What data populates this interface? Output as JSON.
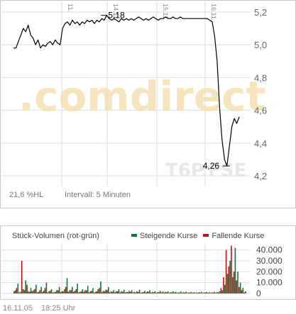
{
  "chart_data": [
    {
      "type": "line",
      "ylim": [
        4.2,
        5.2
      ],
      "yticks": [
        "5,2",
        "5,0",
        "4,8",
        "4,6",
        "4,4",
        "4,2"
      ],
      "ytick_values": [
        5.2,
        5.0,
        4.8,
        4.6,
        4.4,
        4.2
      ],
      "x_day_labels": [
        "11.",
        "14.11.",
        "15.11.",
        "16.11."
      ],
      "grid": true,
      "annotations": [
        {
          "label": "5,18",
          "value": 5.18,
          "kind": "high"
        },
        {
          "label": "4,26",
          "value": 4.26,
          "kind": "low"
        }
      ],
      "series": [
        {
          "values": [
            4.98,
            4.98,
            5.02,
            5.06,
            5.1,
            5.08,
            5.12,
            5.06,
            5.04,
            5.0,
            5.03,
            4.98,
            5.0,
            4.99,
            5.01,
            5.02,
            5.0,
            5.03,
            5.01,
            5.0,
            5.1,
            5.13,
            5.14,
            5.12,
            5.15,
            5.13,
            5.14,
            5.12,
            5.14,
            5.13,
            5.15,
            5.14,
            5.15,
            5.13,
            5.15,
            5.14,
            5.16,
            5.15,
            5.18,
            5.16,
            5.15,
            5.16,
            5.15,
            5.14,
            5.16,
            5.15,
            5.16,
            5.15,
            5.16,
            5.15,
            5.16,
            5.17,
            5.16,
            5.15,
            5.16,
            5.15,
            5.16,
            5.17,
            5.16,
            5.15,
            5.16,
            5.16,
            5.17,
            5.16,
            5.16,
            5.17,
            5.16,
            5.16,
            5.17,
            5.16,
            5.16,
            5.16,
            5.16,
            5.16,
            5.16,
            5.16,
            5.16,
            5.16,
            5.16,
            5.16,
            5.15,
            5.14,
            5.05,
            4.9,
            4.62,
            4.42,
            4.3,
            4.26,
            4.38,
            4.5,
            4.55,
            4.52,
            4.56
          ]
        }
      ]
    },
    {
      "type": "bar",
      "title": "Stück-Volumen (rot-grün)",
      "ylim": [
        0,
        45000
      ],
      "yticks": [
        "40.000",
        "30.000",
        "20.000",
        "10.000",
        "0"
      ],
      "ytick_values": [
        40000,
        30000,
        20000,
        10000,
        0
      ],
      "legend": [
        {
          "name": "Steigende Kurse",
          "color": "#0a7a3a"
        },
        {
          "name": "Fallende Kurse",
          "color": "#c01010"
        }
      ],
      "series": [
        {
          "name": "Steigende Kurse",
          "values": [
            3000,
            9000,
            1500,
            4000,
            12000,
            2000,
            5000,
            3000,
            8000,
            1500,
            6000,
            2500,
            10000,
            2000,
            4000,
            1200,
            3000,
            6000,
            2000,
            4000,
            14000,
            3000,
            6000,
            2500,
            9000,
            1500,
            4000,
            3000,
            7000,
            2000,
            5000,
            1500,
            4000,
            11000,
            2500,
            3500,
            6000,
            1800,
            3000,
            2000,
            4000,
            2000,
            3500,
            1500,
            2500,
            3000,
            1500,
            2000,
            3500,
            1200,
            2500,
            1800,
            3000,
            1500,
            2000,
            1200,
            2500,
            1800,
            1500,
            2000,
            1200,
            2000,
            1500,
            1000,
            1800,
            1200,
            1500,
            1000,
            1400,
            1200,
            1000,
            1200,
            1600,
            1000,
            1400,
            1200,
            1000,
            1500,
            1200,
            2000,
            3000,
            8000,
            18000,
            30000,
            15000,
            42000,
            20000,
            10000,
            5000,
            2000
          ]
        },
        {
          "name": "Fallende Kurse",
          "values": [
            2000,
            5000,
            1000,
            30000,
            3000,
            8000,
            1500,
            2000,
            4000,
            1000,
            3000,
            1500,
            5000,
            1000,
            2500,
            800,
            1500,
            3000,
            1200,
            2000,
            6000,
            1500,
            3000,
            1500,
            4000,
            1000,
            2000,
            1500,
            3000,
            1000,
            2500,
            800,
            2000,
            5000,
            1200,
            2000,
            3000,
            1000,
            1500,
            1000,
            2000,
            1000,
            1500,
            800,
            1200,
            1500,
            800,
            1000,
            1500,
            600,
            1200,
            900,
            1500,
            800,
            1000,
            600,
            1200,
            900,
            800,
            1000,
            600,
            1000,
            800,
            500,
            900,
            600,
            800,
            500,
            700,
            600,
            500,
            600,
            800,
            500,
            700,
            600,
            500,
            800,
            600,
            1000,
            5000,
            15000,
            40000,
            25000,
            44000,
            20000,
            12000,
            6000,
            3000,
            1000
          ]
        }
      ]
    }
  ],
  "watermark": {
    "brand": "comdirect",
    "ticker": "T6P.FSE"
  },
  "price_footer": {
    "range": "21,6 %HL",
    "interval": "Intervall: 5 Minuten"
  },
  "bottom": {
    "date": "16.11.05",
    "time": "18:25 Uhr"
  },
  "colors": {
    "line": "#000000",
    "grid": "#dedede",
    "up": "#0a7a3a",
    "down": "#c01010",
    "watermark": "#f3dca8"
  }
}
